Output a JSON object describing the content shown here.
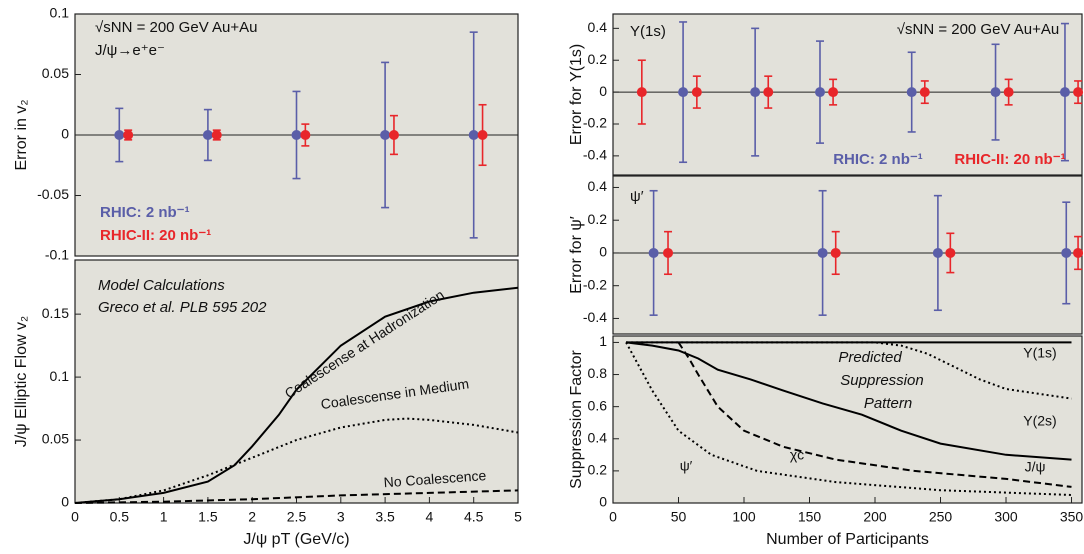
{
  "chart_data": [
    {
      "type": "errorbar",
      "ylabel": "Error in v₂",
      "annotations": [
        "√sNN = 200 GeV Au+Au",
        "J/ψ→e⁺e⁻"
      ],
      "xlim": [
        0,
        5
      ],
      "ylim": [
        -0.1,
        0.1
      ],
      "yticks": [
        -0.1,
        -0.05,
        0,
        0.05,
        0.1
      ],
      "zero_line": true,
      "legend": "lower left",
      "series": [
        {
          "name": "RHIC: 2 nb⁻¹",
          "color": "#5a5ea8",
          "x": [
            0.5,
            1.5,
            2.5,
            3.5,
            4.5
          ],
          "values": [
            0,
            0,
            0,
            0,
            0
          ],
          "errors": [
            0.022,
            0.021,
            0.036,
            0.06,
            0.085
          ]
        },
        {
          "name": "RHIC-II: 20 nb⁻¹",
          "color": "#e8262a",
          "x": [
            0.6,
            1.6,
            2.6,
            3.6,
            4.6
          ],
          "values": [
            0,
            0,
            0,
            0,
            0
          ],
          "errors": [
            0.004,
            0.004,
            0.009,
            0.016,
            0.025
          ]
        }
      ]
    },
    {
      "type": "line",
      "ylabel": "J/ψ Elliptic Flow  v₂",
      "xlabel": "J/ψ  pT (GeV/c)",
      "annotations": [
        "Model Calculations",
        "Greco et al.  PLB 595 202"
      ],
      "xlim": [
        0,
        5
      ],
      "xticks": [
        0,
        0.5,
        1,
        1.5,
        2,
        2.5,
        3,
        3.5,
        4,
        4.5,
        5
      ],
      "ylim": [
        0,
        0.193
      ],
      "yticks": [
        0,
        0.05,
        0.1,
        0.15
      ],
      "series": [
        {
          "name": "Coalescense at Hadronization",
          "color": "#000000",
          "dash": "solid",
          "x": [
            0,
            0.5,
            1,
            1.5,
            1.8,
            2,
            2.3,
            2.5,
            3,
            3.5,
            4,
            4.5,
            5
          ],
          "values": [
            0,
            0.003,
            0.008,
            0.017,
            0.03,
            0.045,
            0.07,
            0.09,
            0.125,
            0.148,
            0.16,
            0.167,
            0.171
          ]
        },
        {
          "name": "Coalescense in Medium",
          "color": "#000000",
          "dash": "dotted",
          "x": [
            0,
            0.5,
            1,
            1.5,
            2,
            2.5,
            3,
            3.5,
            3.75,
            4,
            4.5,
            5
          ],
          "values": [
            0,
            0.003,
            0.01,
            0.022,
            0.036,
            0.05,
            0.06,
            0.066,
            0.067,
            0.066,
            0.062,
            0.056
          ]
        },
        {
          "name": "No Coalescence",
          "color": "#000000",
          "dash": "dashed",
          "x": [
            0,
            1,
            2,
            3,
            4,
            5
          ],
          "values": [
            0,
            0.001,
            0.003,
            0.006,
            0.008,
            0.01
          ]
        }
      ]
    },
    {
      "type": "errorbar",
      "ylabel": "Error for Υ(1s)",
      "annotations": [
        "Υ(1s)",
        "√sNN = 200 GeV Au+Au"
      ],
      "xlim": [
        0,
        358
      ],
      "ylim": [
        -0.52,
        0.49
      ],
      "yticks": [
        -0.4,
        -0.2,
        0,
        0.2,
        0.4
      ],
      "zero_line": true,
      "legend": "lower right",
      "series": [
        {
          "name": "RHIC: 2 nb⁻¹",
          "color": "#5a5ea8",
          "x": [
            53.5,
            108.5,
            158,
            228,
            292,
            345
          ],
          "values": [
            0,
            0,
            0,
            0,
            0,
            0
          ],
          "errors": [
            0.44,
            0.4,
            0.32,
            0.25,
            0.3,
            0.43
          ]
        },
        {
          "name": "RHIC-II: 20 nb⁻¹",
          "color": "#e8262a",
          "x": [
            22,
            64,
            118.5,
            168,
            238,
            302,
            355
          ],
          "values": [
            0,
            0,
            0,
            0,
            0,
            0,
            0
          ],
          "errors": [
            0.2,
            0.1,
            0.1,
            0.08,
            0.07,
            0.08,
            0.07
          ]
        }
      ]
    },
    {
      "type": "errorbar",
      "ylabel": "Error for ψ′",
      "annotations": [
        "ψ′"
      ],
      "xlim": [
        0,
        358
      ],
      "ylim": [
        -0.495,
        0.47
      ],
      "yticks": [
        -0.4,
        -0.2,
        0,
        0.2,
        0.4
      ],
      "zero_line": true,
      "series": [
        {
          "color": "#5a5ea8",
          "x": [
            31,
            160,
            248,
            346
          ],
          "values": [
            0,
            0,
            0,
            0
          ],
          "errors": [
            0.38,
            0.38,
            0.35,
            0.31
          ]
        },
        {
          "color": "#e8262a",
          "x": [
            42,
            170,
            257.5,
            355
          ],
          "values": [
            0,
            0,
            0,
            0
          ],
          "errors": [
            0.13,
            0.13,
            0.12,
            0.1
          ]
        }
      ]
    },
    {
      "type": "line",
      "ylabel": "Suppression Factor",
      "xlabel": "Number of Participants",
      "annotations": [
        "Predicted",
        "Suppression",
        "Pattern"
      ],
      "xlim": [
        0,
        358
      ],
      "xticks": [
        0,
        50,
        100,
        150,
        200,
        250,
        300,
        350
      ],
      "ylim": [
        0,
        1.04
      ],
      "yticks": [
        0,
        0.2,
        0.4,
        0.6,
        0.8,
        1
      ],
      "series": [
        {
          "name": "Υ(1s)",
          "color": "#000000",
          "dash": "solid",
          "x": [
            10,
            350
          ],
          "values": [
            1,
            1
          ]
        },
        {
          "name": "Υ(2s)",
          "color": "#000000",
          "dash": "dotted",
          "x": [
            10,
            200,
            220,
            240,
            260,
            280,
            300,
            325,
            350
          ],
          "values": [
            1,
            1,
            0.98,
            0.93,
            0.85,
            0.77,
            0.71,
            0.68,
            0.65
          ]
        },
        {
          "name": "J/ψ",
          "color": "#000000",
          "dash": "solid",
          "x": [
            10,
            30,
            50,
            65,
            80,
            105,
            130,
            160,
            190,
            220,
            250,
            300,
            350
          ],
          "values": [
            1,
            0.98,
            0.95,
            0.9,
            0.83,
            0.77,
            0.7,
            0.62,
            0.55,
            0.45,
            0.37,
            0.3,
            0.27
          ]
        },
        {
          "name": "χc",
          "color": "#000000",
          "dash": "dashed",
          "x": [
            50,
            58,
            65,
            80,
            100,
            130,
            170,
            230,
            300,
            350
          ],
          "values": [
            1,
            0.9,
            0.8,
            0.6,
            0.45,
            0.35,
            0.27,
            0.2,
            0.15,
            0.1
          ]
        },
        {
          "name": "ψ′",
          "color": "#000000",
          "dash": "dotted",
          "x": [
            10,
            20,
            30,
            50,
            75,
            110,
            170,
            250,
            350
          ],
          "values": [
            1,
            0.85,
            0.7,
            0.45,
            0.3,
            0.2,
            0.13,
            0.08,
            0.05
          ]
        }
      ]
    }
  ]
}
